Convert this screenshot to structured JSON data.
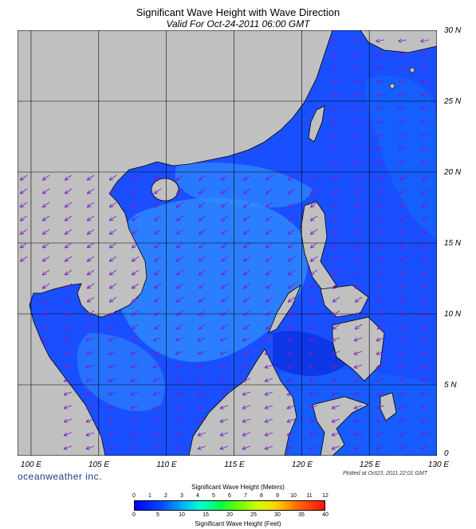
{
  "header": {
    "title": "Significant Wave Height with Wave Direction",
    "subtitle": "Valid For Oct-24-2011 06:00 GMT"
  },
  "map": {
    "lon_range": [
      99,
      130
    ],
    "lat_range": [
      0,
      30
    ],
    "lon_labels": [
      "100 E",
      "105 E",
      "110 E",
      "115 E",
      "120 E",
      "125 E",
      "130 E"
    ],
    "lat_labels": [
      "30 N",
      "25 N",
      "20 N",
      "15 N",
      "10 N",
      "5 N",
      "0"
    ],
    "land_color": "#c0c0c0",
    "ocean_color": "#1f5cff",
    "arrow_color": "#7a1fc0"
  },
  "footer": {
    "logo": "oceanweather inc.",
    "plotted": "Plotted at Oct23, 2011 22:01 GMT"
  },
  "colorbar": {
    "meters_title": "Significant Wave Height (Meters)",
    "feet_title": "Significant Wave Height (Feet)",
    "meters_ticks": [
      "0",
      "1",
      "2",
      "3",
      "4",
      "5",
      "6",
      "7",
      "8",
      "9",
      "10",
      "11",
      "12"
    ],
    "feet_ticks": [
      "0",
      "5",
      "10",
      "15",
      "20",
      "25",
      "30",
      "35",
      "40"
    ]
  }
}
